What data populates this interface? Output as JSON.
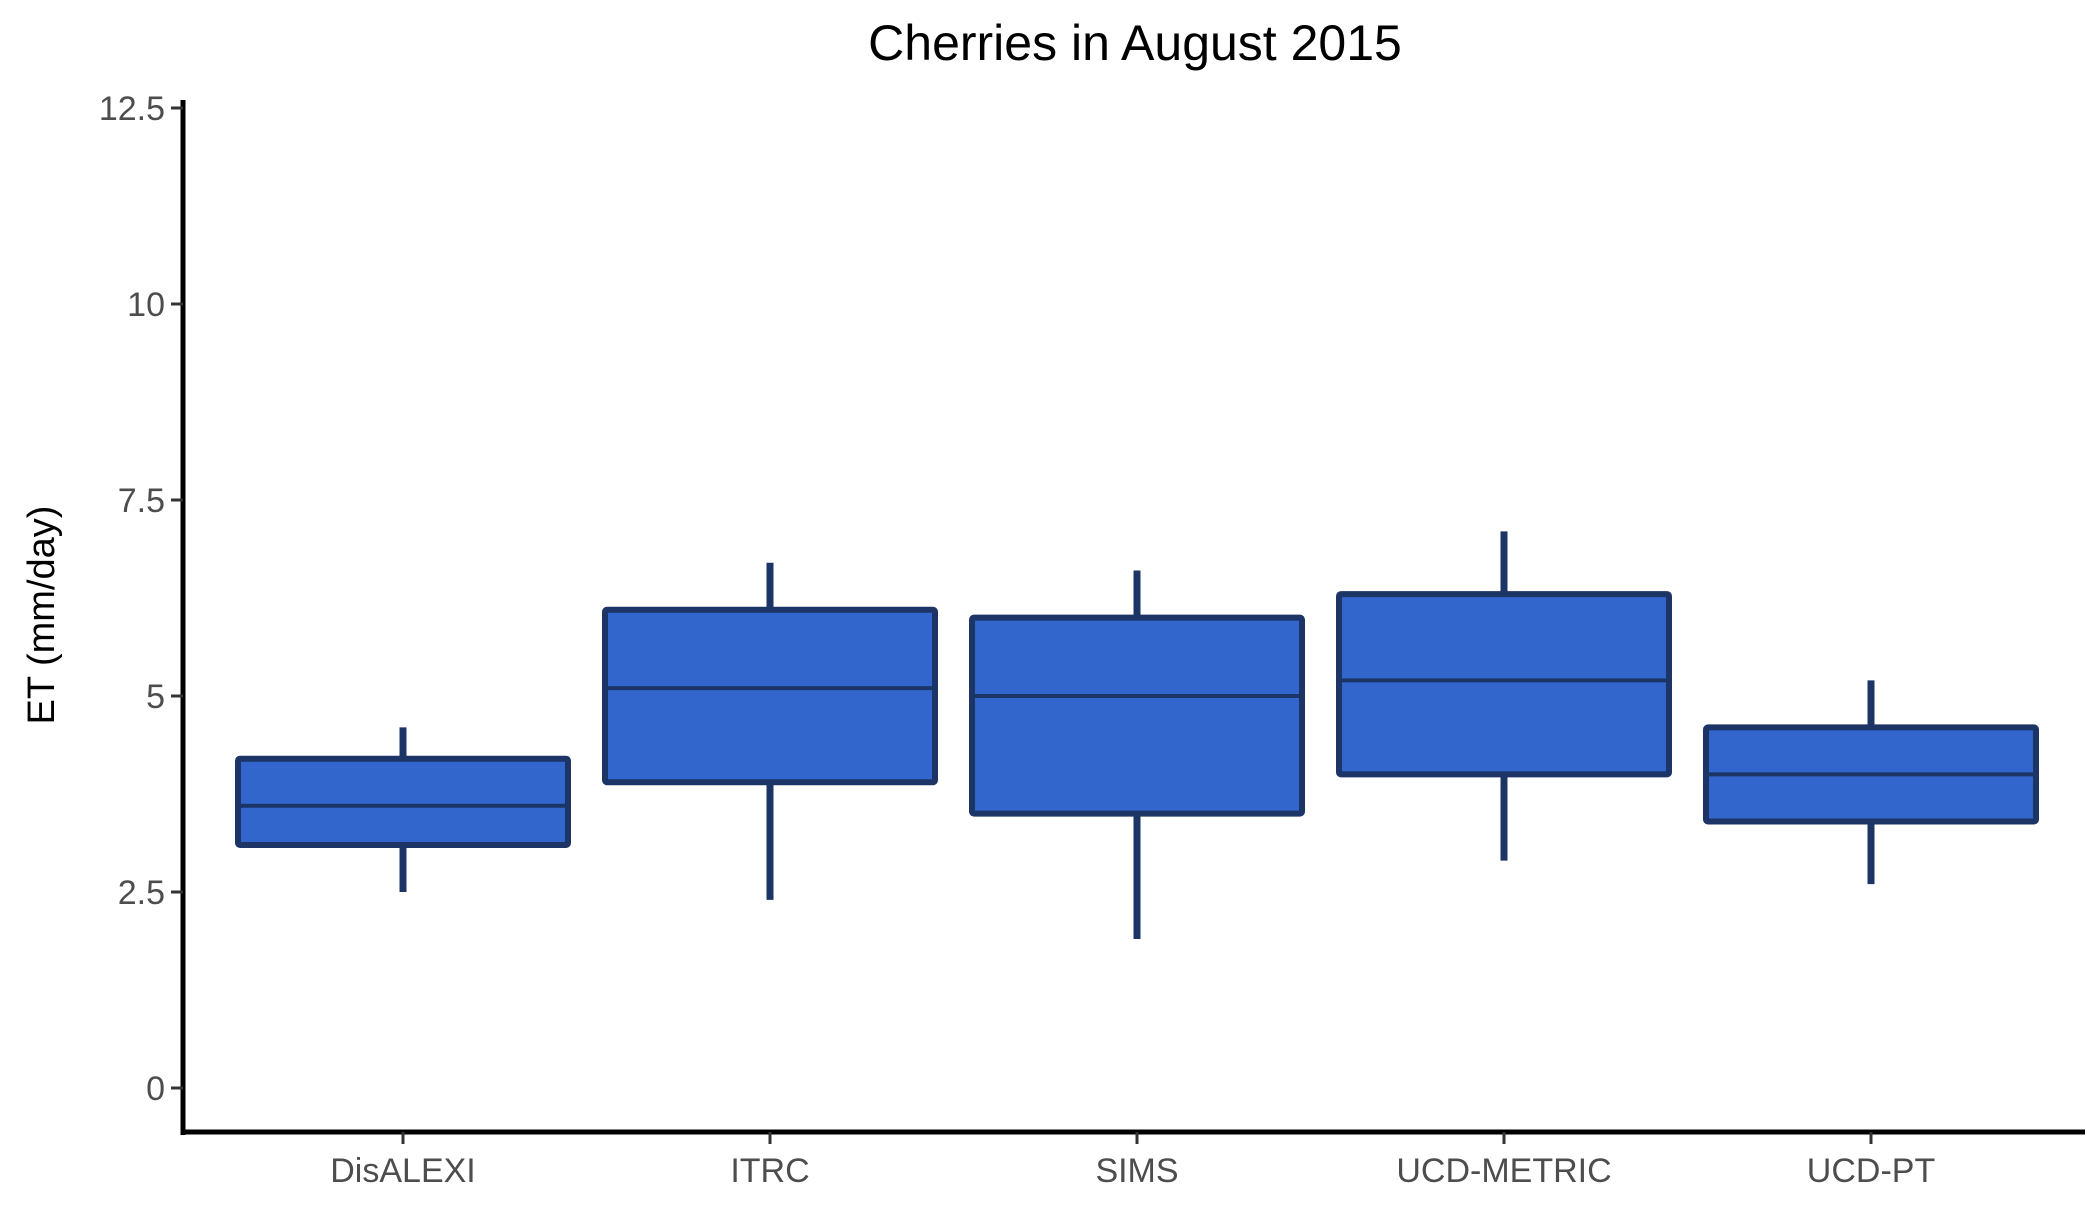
{
  "chart_data": {
    "type": "box",
    "title": "Cherries in August 2015",
    "xlabel": "",
    "ylabel": "ET (mm/day)",
    "ylim": [
      -0.6,
      12.5
    ],
    "yticks": [
      0,
      2.5,
      5,
      7.5,
      10,
      12.5
    ],
    "ytick_labels": [
      "0",
      "2.5",
      "5",
      "7.5",
      "10",
      "12.5"
    ],
    "grid": false,
    "legend": "none",
    "categories": [
      "DisALEXI",
      "ITRC",
      "SIMS",
      "UCD-METRIC",
      "UCD-PT"
    ],
    "boxes": [
      {
        "category": "DisALEXI",
        "min": 2.5,
        "q1": 3.1,
        "median": 3.6,
        "q3": 4.2,
        "max": 4.6
      },
      {
        "category": "ITRC",
        "min": 2.4,
        "q1": 3.9,
        "median": 5.1,
        "q3": 6.1,
        "max": 6.7
      },
      {
        "category": "SIMS",
        "min": 1.9,
        "q1": 3.5,
        "median": 5.0,
        "q3": 6.0,
        "max": 6.6
      },
      {
        "category": "UCD-METRIC",
        "min": 2.9,
        "q1": 4.0,
        "median": 5.2,
        "q3": 6.3,
        "max": 7.1
      },
      {
        "category": "UCD-PT",
        "min": 2.6,
        "q1": 3.4,
        "median": 4.0,
        "q3": 4.6,
        "max": 5.2
      }
    ],
    "colors": {
      "fill": "#3366cc",
      "outline": "#1c3466",
      "axis": "#000000"
    }
  }
}
